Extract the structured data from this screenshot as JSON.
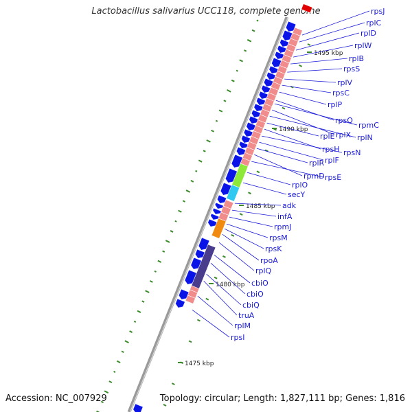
{
  "title": "Lactobacillus salivarius UCC118, complete genome",
  "footer": {
    "accession": "Accession: NC_007929",
    "summary": "Topology: circular; Length: 1,827,111 bp; Genes: 1,816"
  },
  "kbp_labels": [
    "1495 kbp",
    "1490 kbp",
    "1485 kbp",
    "1480 kbp",
    "1475 kbp"
  ],
  "gene_labels": [
    "rpsJ",
    "rplC",
    "rplD",
    "rplW",
    "rplB",
    "rpsS",
    "rplV",
    "rpsC",
    "rplP",
    "rpsQ",
    "rpmC",
    "rplX",
    "rplN",
    "rplE",
    "rpsH",
    "rpsN",
    "rplF",
    "rplR",
    "rpmD",
    "rpsE",
    "rplO",
    "secY",
    "adk",
    "infA",
    "rpmJ",
    "rpsM",
    "rpsK",
    "rpoA",
    "rplQ",
    "cbiO",
    "cbiO",
    "cbiQ",
    "truA",
    "rplM",
    "rpsI"
  ],
  "colors": {
    "gene_label": "#1a1ad6",
    "cds_arrow": "#0a14e6",
    "rna_track": "#f08c8c",
    "backbone": "#9a9a9a",
    "gc_tick": "#3a8a2a",
    "highlight_green": "#8de83a",
    "highlight_cyan": "#2ec8f0",
    "highlight_orange": "#f08a10",
    "highlight_purple": "#4a3c8c",
    "red_marker": "#e00000"
  }
}
